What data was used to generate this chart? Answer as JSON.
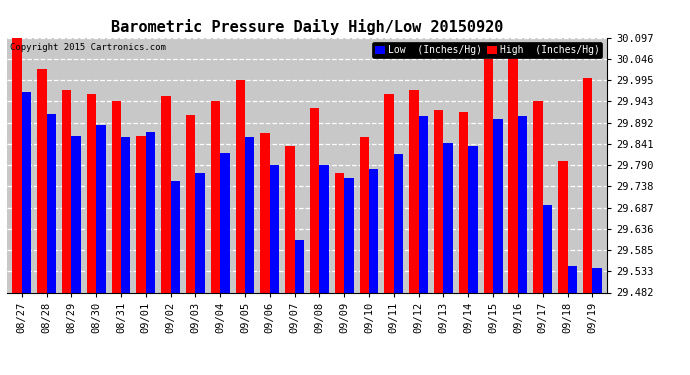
{
  "title": "Barometric Pressure Daily High/Low 20150920",
  "copyright": "Copyright 2015 Cartronics.com",
  "legend_low": "Low  (Inches/Hg)",
  "legend_high": "High  (Inches/Hg)",
  "dates": [
    "08/27",
    "08/28",
    "08/29",
    "08/30",
    "08/31",
    "09/01",
    "09/02",
    "09/03",
    "09/04",
    "09/05",
    "09/06",
    "09/07",
    "09/08",
    "09/09",
    "09/10",
    "09/11",
    "09/12",
    "09/13",
    "09/14",
    "09/15",
    "09/16",
    "09/17",
    "09/18",
    "09/19"
  ],
  "high": [
    30.097,
    30.021,
    29.97,
    29.96,
    29.943,
    29.86,
    29.955,
    29.91,
    29.943,
    29.995,
    29.867,
    29.835,
    29.926,
    29.77,
    29.858,
    29.96,
    29.97,
    29.921,
    29.918,
    30.046,
    30.064,
    29.943,
    29.8,
    30.0
  ],
  "low": [
    29.965,
    29.912,
    29.86,
    29.885,
    29.858,
    29.868,
    29.75,
    29.77,
    29.818,
    29.858,
    29.79,
    29.608,
    29.79,
    29.758,
    29.78,
    29.816,
    29.908,
    29.843,
    29.836,
    29.9,
    29.908,
    29.692,
    29.545,
    29.54
  ],
  "ylim_min": 29.482,
  "ylim_max": 30.097,
  "yticks": [
    29.482,
    29.533,
    29.585,
    29.636,
    29.687,
    29.738,
    29.79,
    29.841,
    29.892,
    29.943,
    29.995,
    30.046,
    30.097
  ],
  "bar_width": 0.38,
  "low_color": "#0000ff",
  "high_color": "#ff0000",
  "background_color": "#c8c8c8",
  "title_fontsize": 11,
  "tick_fontsize": 7.5
}
